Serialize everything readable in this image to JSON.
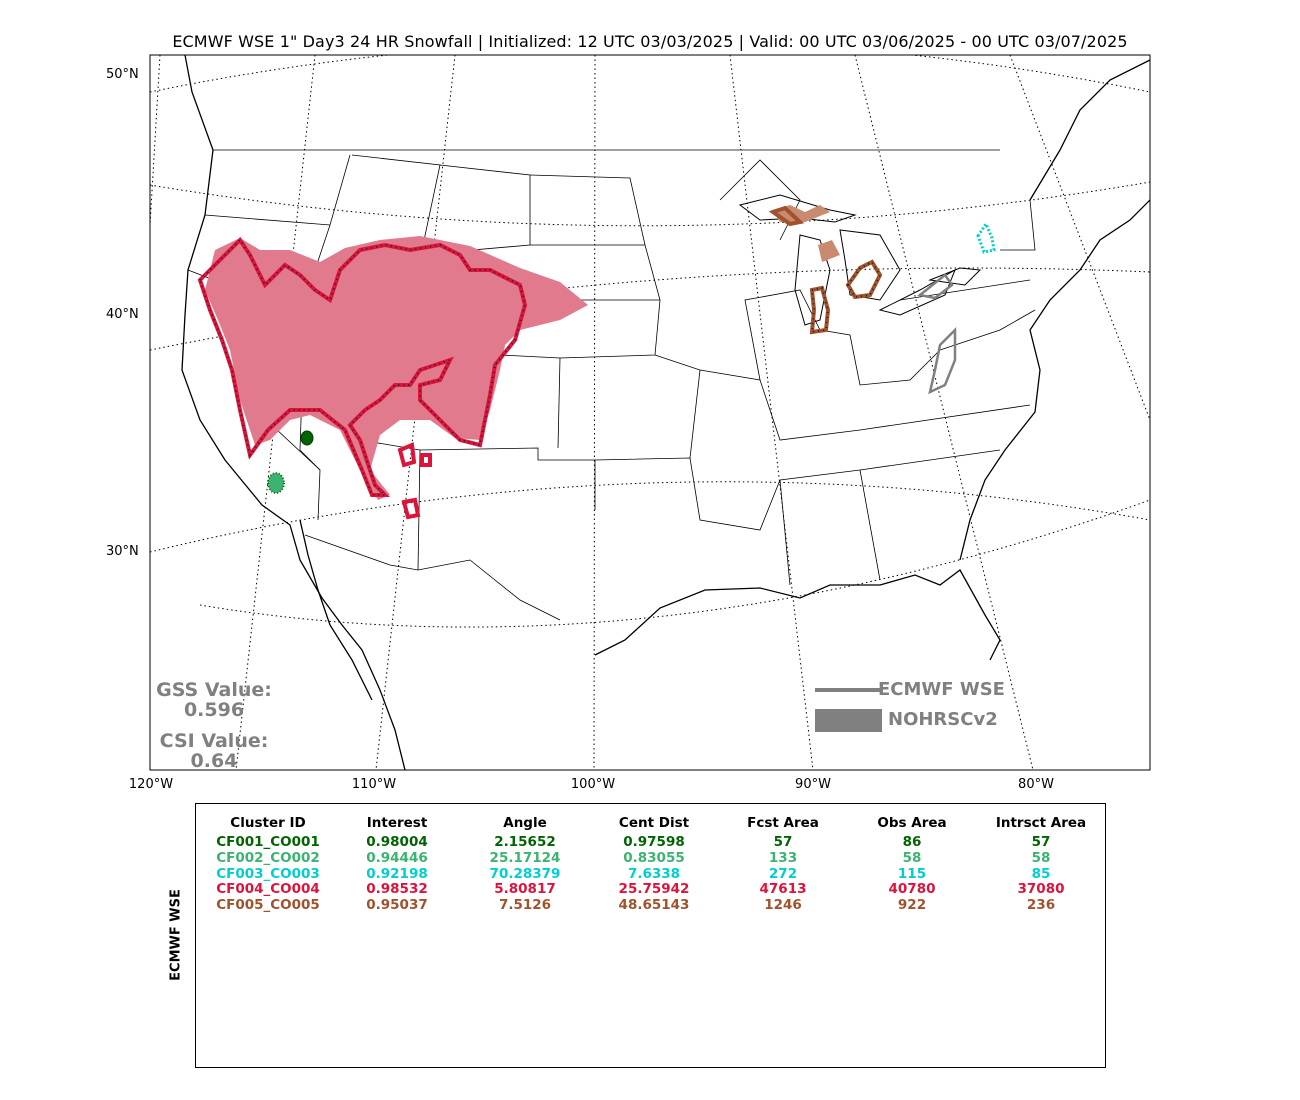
{
  "title": "ECMWF WSE 1\" Day3 24 HR Snowfall | Initialized: 12 UTC 03/03/2025 | Valid: 00 UTC 03/06/2025 - 00 UTC 03/07/2025",
  "map": {
    "lat_labels": [
      "50°N",
      "40°N",
      "30°N"
    ],
    "lon_labels": [
      "120°W",
      "110°W",
      "100°W",
      "90°W",
      "80°W"
    ]
  },
  "stats": {
    "gss_label": "GSS Value:",
    "gss_value": "0.596",
    "csi_label": "CSI Value:",
    "csi_value": "0.64"
  },
  "legend": {
    "forecast_label": "ECMWF WSE",
    "observed_label": "NOHRSCv2",
    "line_color": "#808080"
  },
  "table": {
    "side_label": "ECMWF WSE",
    "headers": [
      "Cluster ID",
      "Interest",
      "Angle",
      "Cent Dist",
      "Fcst Area",
      "Obs Area",
      "Intrsct Area"
    ],
    "rows": [
      {
        "color": "#006400",
        "cells": [
          "CF001_CO001",
          "0.98004",
          "2.15652",
          "0.97598",
          "57",
          "86",
          "57"
        ]
      },
      {
        "color": "#3cb371",
        "cells": [
          "CF002_CO002",
          "0.94446",
          "25.17124",
          "0.83055",
          "133",
          "58",
          "58"
        ]
      },
      {
        "color": "#00ced1",
        "cells": [
          "CF003_CO003",
          "0.92198",
          "70.28379",
          "7.6338",
          "272",
          "115",
          "85"
        ]
      },
      {
        "color": "#dc143c",
        "cells": [
          "CF004_CO004",
          "0.98532",
          "5.80817",
          "25.75942",
          "47613",
          "40780",
          "37080"
        ]
      },
      {
        "color": "#a0522d",
        "cells": [
          "CF005_CO005",
          "0.95037",
          "7.5126",
          "48.65143",
          "1246",
          "922",
          "236"
        ]
      }
    ]
  },
  "colors": {
    "cluster1": "#006400",
    "cluster2": "#3cb371",
    "cluster3": "#00ced1",
    "cluster4": "#dc143c",
    "cluster4_fill": "#e07a8c",
    "cluster5": "#a0522d",
    "cluster5_fill": "#c98a70"
  }
}
